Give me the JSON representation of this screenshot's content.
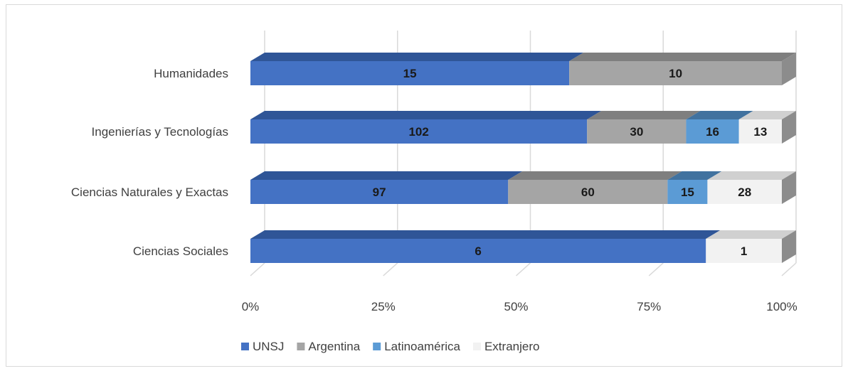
{
  "chart_data": {
    "type": "bar",
    "orientation": "horizontal",
    "stacking": "percent",
    "title": "",
    "xlabel": "",
    "ylabel": "",
    "xlim": [
      0,
      100
    ],
    "x_ticks": [
      "0%",
      "25%",
      "50%",
      "75%",
      "100%"
    ],
    "grid": true,
    "legend_position": "bottom",
    "categories": [
      "Humanidades",
      "Ingenierías y Tecnologías",
      "Ciencias Naturales y Exactas",
      "Ciencias Sociales"
    ],
    "series": [
      {
        "name": "UNSJ",
        "color": "#4472c4",
        "top_color": "#2f5597",
        "values": [
          15,
          102,
          97,
          6
        ]
      },
      {
        "name": "Argentina",
        "color": "#a5a5a5",
        "top_color": "#7f7f7f",
        "values": [
          10,
          30,
          60,
          0
        ]
      },
      {
        "name": "Latinoamérica",
        "color": "#5b9bd5",
        "top_color": "#41729f",
        "values": [
          0,
          16,
          15,
          0
        ]
      },
      {
        "name": "Extranjero",
        "color": "#f2f2f2",
        "top_color": "#d0d0d0",
        "values": [
          0,
          13,
          28,
          1
        ]
      }
    ]
  }
}
